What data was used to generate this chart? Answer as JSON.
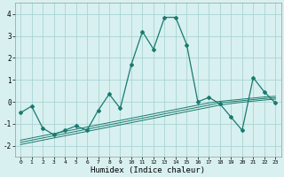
{
  "x": [
    0,
    1,
    2,
    3,
    4,
    5,
    6,
    7,
    8,
    9,
    10,
    11,
    12,
    13,
    14,
    15,
    16,
    17,
    18,
    19,
    20,
    21,
    22,
    23
  ],
  "y_main": [
    -0.5,
    -0.2,
    -1.2,
    -1.5,
    -1.3,
    -1.1,
    -1.3,
    -0.4,
    0.35,
    -0.3,
    1.7,
    3.2,
    2.4,
    3.85,
    3.85,
    2.6,
    0.0,
    0.2,
    -0.1,
    -0.7,
    -1.3,
    1.1,
    0.45,
    -0.05
  ],
  "y_trend1": [
    -1.85,
    -1.75,
    -1.65,
    -1.55,
    -1.45,
    -1.35,
    -1.25,
    -1.15,
    -1.05,
    -0.95,
    -0.85,
    -0.75,
    -0.65,
    -0.55,
    -0.45,
    -0.35,
    -0.25,
    -0.15,
    -0.05,
    0.0,
    0.05,
    0.1,
    0.15,
    0.18
  ],
  "y_trend2": [
    -1.95,
    -1.85,
    -1.75,
    -1.65,
    -1.55,
    -1.45,
    -1.35,
    -1.25,
    -1.15,
    -1.05,
    -0.95,
    -0.85,
    -0.75,
    -0.65,
    -0.55,
    -0.45,
    -0.35,
    -0.25,
    -0.15,
    -0.08,
    -0.02,
    0.03,
    0.08,
    0.12
  ],
  "y_trend3": [
    -1.75,
    -1.65,
    -1.55,
    -1.45,
    -1.35,
    -1.25,
    -1.15,
    -1.05,
    -0.95,
    -0.85,
    -0.75,
    -0.65,
    -0.55,
    -0.45,
    -0.35,
    -0.25,
    -0.15,
    -0.05,
    0.02,
    0.07,
    0.12,
    0.17,
    0.22,
    0.25
  ],
  "line_color": "#1a7a6e",
  "bg_color": "#d8f0f0",
  "grid_color": "#aad4d4",
  "xlabel": "Humidex (Indice chaleur)",
  "ylim": [
    -2.5,
    4.5
  ],
  "xlim": [
    -0.5,
    23.5
  ],
  "yticks": [
    -2,
    -1,
    0,
    1,
    2,
    3,
    4
  ],
  "xticks": [
    0,
    1,
    2,
    3,
    4,
    5,
    6,
    7,
    8,
    9,
    10,
    11,
    12,
    13,
    14,
    15,
    16,
    17,
    18,
    19,
    20,
    21,
    22,
    23
  ]
}
